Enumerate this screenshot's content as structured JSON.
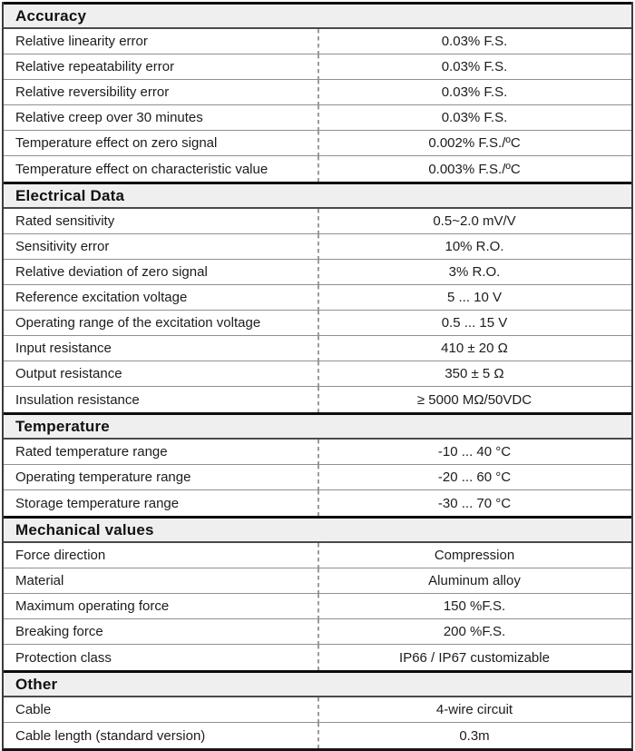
{
  "colors": {
    "header_bg": "#efefef",
    "outer_border": "#141414",
    "row_divider": "#909090",
    "dashed_divider": "#9c9c9c",
    "text": "#1c1c1c"
  },
  "sections": [
    {
      "title": "Accuracy",
      "rows": [
        {
          "label": "Relative linearity error",
          "value": "0.03% F.S."
        },
        {
          "label": "Relative repeatability error",
          "value": "0.03% F.S."
        },
        {
          "label": "Relative reversibility error",
          "value": "0.03% F.S."
        },
        {
          "label": "Relative creep over 30 minutes",
          "value": "0.03% F.S."
        },
        {
          "label": "Temperature effect on zero signal",
          "value": "0.002% F.S./ºC"
        },
        {
          "label": "Temperature effect on characteristic value",
          "value": "0.003% F.S./ºC"
        }
      ]
    },
    {
      "title": "Electrical Data",
      "rows": [
        {
          "label": "Rated sensitivity",
          "value": "0.5~2.0 mV/V"
        },
        {
          "label": "Sensitivity error",
          "value": "10% R.O."
        },
        {
          "label": "Relative deviation of zero signal",
          "value": "3% R.O."
        },
        {
          "label": "Reference excitation voltage",
          "value": "5 ... 10 V"
        },
        {
          "label": "Operating range of the excitation voltage",
          "value": "0.5 ... 15 V"
        },
        {
          "label": "Input resistance",
          "value": "410 ± 20 Ω"
        },
        {
          "label": "Output resistance",
          "value": "350 ± 5 Ω"
        },
        {
          "label": "Insulation resistance",
          "value": "≥ 5000 MΩ/50VDC"
        }
      ]
    },
    {
      "title": "Temperature",
      "rows": [
        {
          "label": "Rated temperature range",
          "value": "-10 ... 40 °C"
        },
        {
          "label": "Operating temperature range",
          "value": "-20 ... 60 °C"
        },
        {
          "label": "Storage temperature range",
          "value": "-30 ... 70 °C"
        }
      ]
    },
    {
      "title": "Mechanical values",
      "rows": [
        {
          "label": "Force direction",
          "value": "Compression"
        },
        {
          "label": "Material",
          "value": "Aluminum alloy"
        },
        {
          "label": "Maximum operating force",
          "value": "150 %F.S."
        },
        {
          "label": "Breaking force",
          "value": "200 %F.S."
        },
        {
          "label": "Protection class",
          "value": "IP66 / IP67 customizable"
        }
      ]
    },
    {
      "title": "Other",
      "rows": [
        {
          "label": "Cable",
          "value": "4-wire circuit"
        },
        {
          "label": "Cable length (standard version)",
          "value": "0.3m"
        }
      ]
    }
  ]
}
